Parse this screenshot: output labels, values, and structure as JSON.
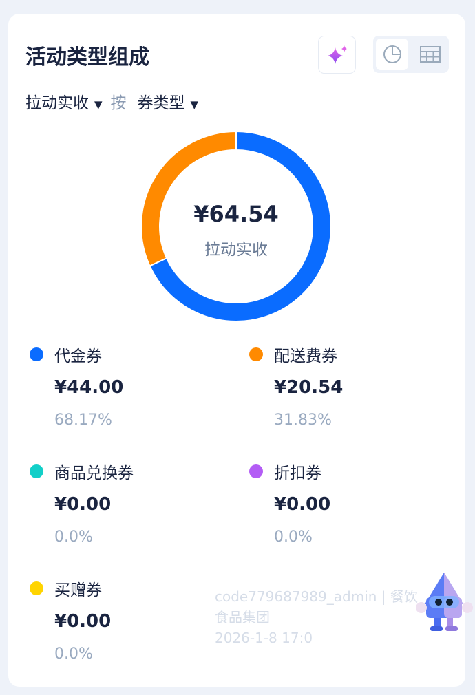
{
  "header": {
    "title": "活动类型组成",
    "ai_icon": "sparkle-icon",
    "view_toggle": [
      {
        "icon": "pie-chart-icon",
        "active": true
      },
      {
        "icon": "table-icon",
        "active": false
      }
    ]
  },
  "filters": {
    "metric": "拉动实收",
    "by": "按",
    "dimension": "券类型"
  },
  "summary": {
    "total": "¥64.54",
    "label": "拉动实收"
  },
  "chart_data": {
    "type": "pie",
    "donut": true,
    "categories": [
      "代金券",
      "配送费券",
      "商品兑换券",
      "折扣券",
      "买赠券"
    ],
    "values": [
      44.0,
      20.54,
      0,
      0,
      0
    ],
    "percents": [
      68.17,
      31.83,
      0,
      0,
      0
    ],
    "colors": [
      "#0a6cff",
      "#ff8a00",
      "#12cfc8",
      "#b35cf5",
      "#ffd400"
    ]
  },
  "legend": [
    {
      "name": "代金券",
      "value": "¥44.00",
      "percent": "68.17%",
      "color": "#0a6cff"
    },
    {
      "name": "配送费券",
      "value": "¥20.54",
      "percent": "31.83%",
      "color": "#ff8a00"
    },
    {
      "name": "商品兑换券",
      "value": "¥0.00",
      "percent": "0.0%",
      "color": "#12cfc8"
    },
    {
      "name": "折扣券",
      "value": "¥0.00",
      "percent": "0.0%",
      "color": "#b35cf5"
    },
    {
      "name": "买赠券",
      "value": "¥0.00",
      "percent": "0.0%",
      "color": "#ffd400"
    }
  ],
  "watermark": {
    "line1": "code779687989_admin | 餐饮",
    "line2": "食品集团",
    "line3": "2026-1-8 17:0"
  }
}
